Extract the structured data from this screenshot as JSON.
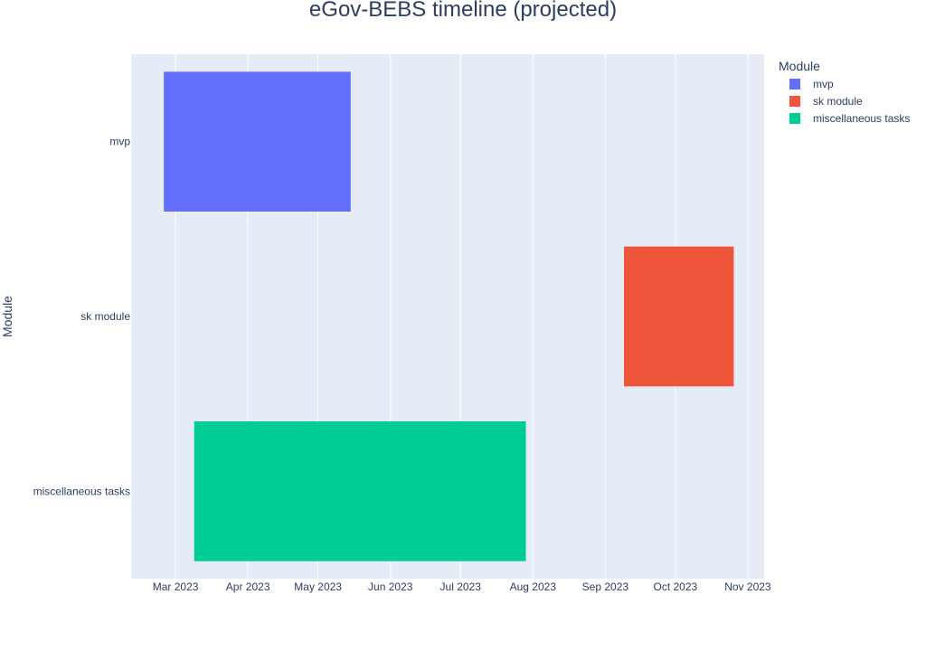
{
  "chart_data": {
    "type": "bar",
    "orientation": "horizontal-timeline",
    "title": "eGov-BEBS timeline (projected)",
    "xlabel": "",
    "ylabel": "Module",
    "legend": {
      "title": "Module",
      "placement": "top-right-outside"
    },
    "xlim": [
      "2023-02-10",
      "2023-11-08"
    ],
    "x_ticks": [
      {
        "date": "2023-03-01",
        "label": "Mar 2023"
      },
      {
        "date": "2023-04-01",
        "label": "Apr 2023"
      },
      {
        "date": "2023-05-01",
        "label": "May 2023"
      },
      {
        "date": "2023-06-01",
        "label": "Jun 2023"
      },
      {
        "date": "2023-07-01",
        "label": "Jul 2023"
      },
      {
        "date": "2023-08-01",
        "label": "Aug 2023"
      },
      {
        "date": "2023-09-01",
        "label": "Sep 2023"
      },
      {
        "date": "2023-10-01",
        "label": "Oct 2023"
      },
      {
        "date": "2023-11-01",
        "label": "Nov 2023"
      }
    ],
    "categories": [
      "mvp",
      "sk module",
      "miscellaneous tasks"
    ],
    "series": [
      {
        "name": "mvp",
        "color": "#636efa",
        "start": "2023-02-24",
        "end": "2023-05-15"
      },
      {
        "name": "sk module",
        "color": "#ef553b",
        "start": "2023-09-09",
        "end": "2023-10-26"
      },
      {
        "name": "miscellaneous tasks",
        "color": "#00cc96",
        "start": "2023-03-09",
        "end": "2023-07-29"
      }
    ],
    "grid": true,
    "colors": {
      "plot_background": "#e5ecf6",
      "grid": "#ffffff",
      "text": "#2a3f5f"
    }
  }
}
